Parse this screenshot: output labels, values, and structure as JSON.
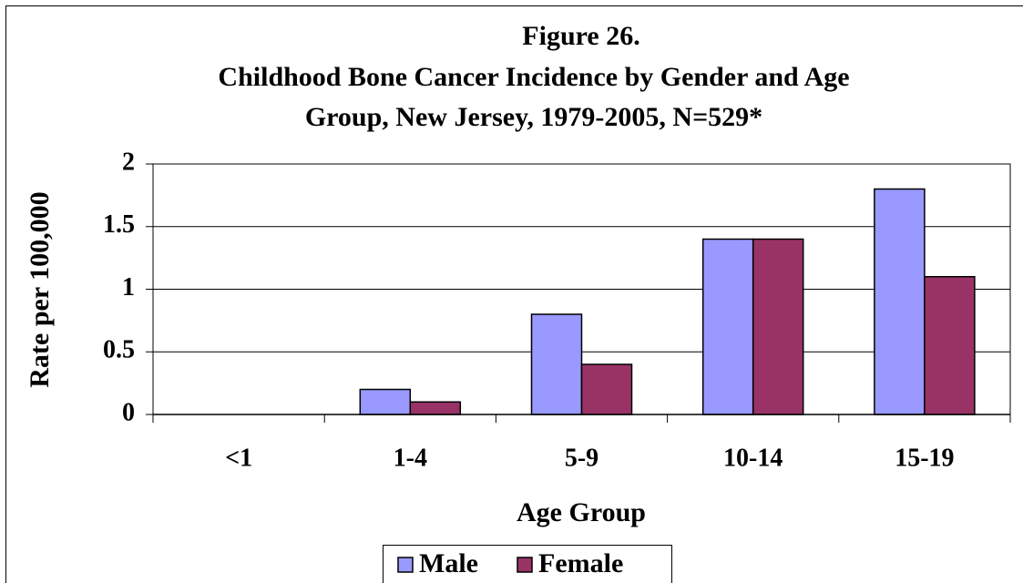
{
  "chart_data": {
    "type": "bar",
    "title": [
      "Figure 26.",
      "Childhood Bone Cancer Incidence by Gender and Age",
      "Group, New Jersey, 1979-2005, N=529*"
    ],
    "x_label": "Age Group",
    "y_label": "Rate per 100,000",
    "categories": [
      "<1",
      "1-4",
      "5-9",
      "10-14",
      "15-19"
    ],
    "series": [
      {
        "name": "Male",
        "color": "#9999ff",
        "values": [
          0,
          0.2,
          0.8,
          1.4,
          1.8
        ]
      },
      {
        "name": "Female",
        "color": "#993366",
        "values": [
          0,
          0.1,
          0.4,
          1.4,
          1.1
        ]
      }
    ],
    "ylim": [
      0,
      2
    ],
    "yticks": [
      0,
      0.5,
      1,
      1.5,
      2
    ],
    "grid": true,
    "legend": "bottom"
  }
}
